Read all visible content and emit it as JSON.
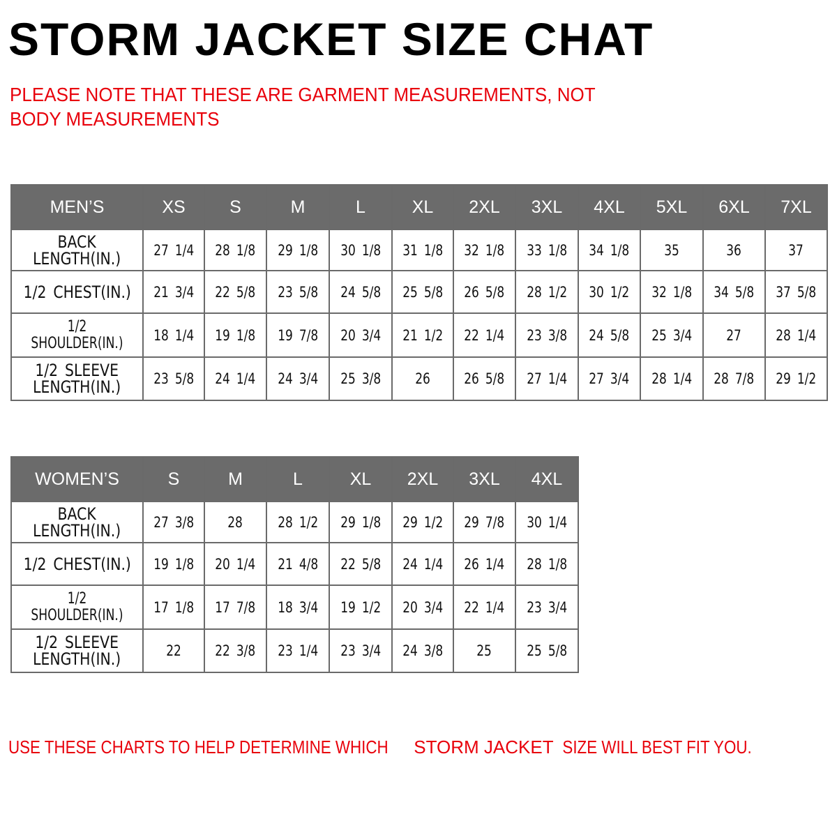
{
  "title": "STORM JACKET SIZE CHAT",
  "note": "PLEASE NOTE THAT THESE ARE GARMENT MEASUREMENTS, NOT BODY MEASUREMENTS",
  "colors": {
    "header_bg": "#6b6b6b",
    "accent_red": "#e8000b"
  },
  "mens": {
    "label": "MEN’S",
    "sizes": [
      "XS",
      "S",
      "M",
      "L",
      "XL",
      "2XL",
      "3XL",
      "4XL",
      "5XL",
      "6XL",
      "7XL"
    ],
    "rows": [
      {
        "label": "BACK\nLENGTH(IN.)",
        "values": [
          "27 1/4",
          "28 1/8",
          "29 1/8",
          "30 1/8",
          "31 1/8",
          "32 1/8",
          "33 1/8",
          "34 1/8",
          "35",
          "36",
          "37"
        ]
      },
      {
        "label": "1/2 CHEST(IN.)",
        "values": [
          "21 3/4",
          "22 5/8",
          "23 5/8",
          "24 5/8",
          "25 5/8",
          "26 5/8",
          "28 1/2",
          "30 1/2",
          "32 1/8",
          "34 5/8",
          "37 5/8"
        ]
      },
      {
        "label": "1/2 SHOULDER(IN.)",
        "values": [
          "18 1/4",
          "19 1/8",
          "19 7/8",
          "20 3/4",
          "21 1/2",
          "22 1/4",
          "23 3/8",
          "24 5/8",
          "25 3/4",
          "27",
          "28 1/4"
        ]
      },
      {
        "label": "1/2 SLEEVE\nLENGTH(IN.)",
        "values": [
          "23 5/8",
          "24 1/4",
          "24 3/4",
          "25 3/8",
          "26",
          "26 5/8",
          "27 1/4",
          "27 3/4",
          "28 1/4",
          "28 7/8",
          "29 1/2"
        ]
      }
    ]
  },
  "womens": {
    "label": "WOMEN’S",
    "sizes": [
      "S",
      "M",
      "L",
      "XL",
      "2XL",
      "3XL",
      "4XL"
    ],
    "rows": [
      {
        "label": "BACK\nLENGTH(IN.)",
        "values": [
          "27 3/8",
          "28",
          "28 1/2",
          "29 1/8",
          "29 1/2",
          "29 7/8",
          "30 1/4"
        ]
      },
      {
        "label": "1/2 CHEST(IN.)",
        "values": [
          "19 1/8",
          "20 1/4",
          "21 4/8",
          "22 5/8",
          "24 1/4",
          "26 1/4",
          "28 1/8"
        ]
      },
      {
        "label": "1/2 SHOULDER(IN.)",
        "values": [
          "17 1/8",
          "17 7/8",
          "18 3/4",
          "19 1/2",
          "20 3/4",
          "22 1/4",
          "23 3/4"
        ]
      },
      {
        "label": "1/2 SLEEVE\nLENGTH(IN.)",
        "values": [
          "22",
          "22 3/8",
          "23 1/4",
          "23 3/4",
          "24 3/8",
          "25",
          "25 5/8"
        ]
      }
    ]
  },
  "footer": {
    "part1": "USE THESE CHARTS TO HELP DETERMINE WHICH ",
    "part2": "STORM JACKET",
    "part3": "  SIZE WILL BEST FIT YOU."
  }
}
